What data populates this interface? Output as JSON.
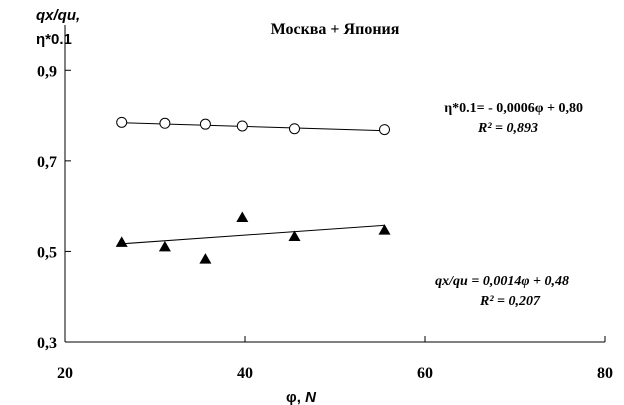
{
  "chart_data": {
    "type": "scatter",
    "title": "Москва + Япония",
    "ylabel_line1": "qx/qu,",
    "ylabel_line2": "η*0.1",
    "xlabel_symbol": "φ, ",
    "xlabel_var": "N",
    "xlim": [
      20,
      80
    ],
    "ylim": [
      0.3,
      1.0
    ],
    "xticks": [
      20,
      40,
      60,
      80
    ],
    "xtick_labels": [
      "20",
      "40",
      "60",
      "80"
    ],
    "yticks": [
      0.3,
      0.5,
      0.7,
      0.9
    ],
    "ytick_labels": [
      "0,3",
      "0,5",
      "0,7",
      "0,9"
    ],
    "grid": false,
    "series": [
      {
        "marker": "circle-open",
        "x": [
          26.3,
          31.1,
          35.6,
          39.7,
          45.5,
          55.5
        ],
        "y": [
          0.785,
          0.783,
          0.781,
          0.777,
          0.771,
          0.769
        ],
        "trend": {
          "slope": -0.0006,
          "intercept": 0.8,
          "x_range": [
            26.3,
            55.5
          ]
        },
        "equation": "η*0.1= - 0,0006φ + 0,80",
        "r2": "R² = 0,893"
      },
      {
        "marker": "triangle-filled",
        "x": [
          26.3,
          31.1,
          35.6,
          39.7,
          45.5,
          55.5
        ],
        "y": [
          0.52,
          0.51,
          0.483,
          0.575,
          0.533,
          0.547
        ],
        "trend": {
          "slope": 0.0014,
          "intercept": 0.48,
          "x_range": [
            26.3,
            55.5
          ]
        },
        "equation": "qx/qu = 0,0014φ + 0,48",
        "r2": "R² = 0,207"
      }
    ]
  }
}
